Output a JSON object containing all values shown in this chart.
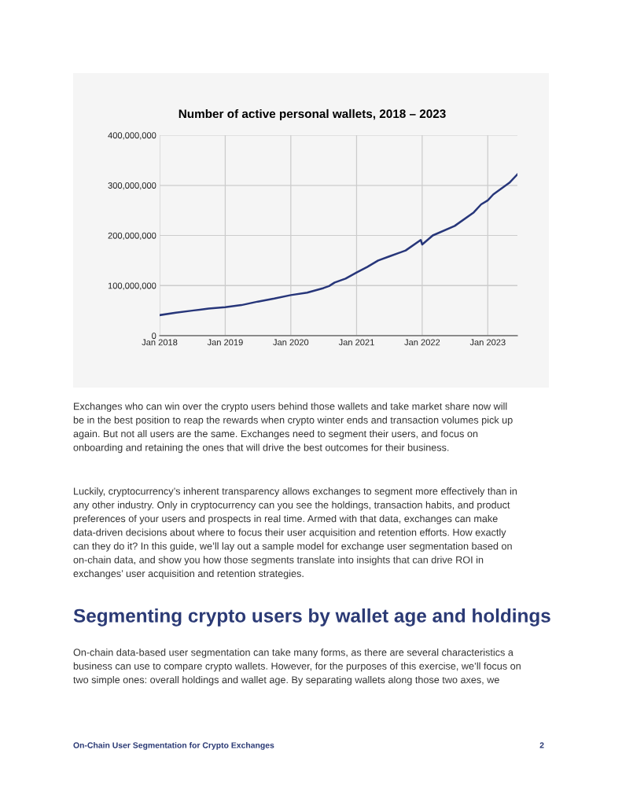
{
  "chart_data": {
    "type": "line",
    "title": "Number of active personal wallets, 2018 – 2023",
    "x": [
      "2018-01-01",
      "2018-04-01",
      "2018-07-01",
      "2018-10-01",
      "2019-01-01",
      "2019-04-01",
      "2019-07-01",
      "2019-10-01",
      "2020-01-01",
      "2020-04-01",
      "2020-07-01",
      "2020-08-01",
      "2020-09-01",
      "2020-11-01",
      "2021-01-01",
      "2021-03-01",
      "2021-05-01",
      "2021-07-01",
      "2021-10-01",
      "2021-12-24",
      "2022-01-01",
      "2022-03-01",
      "2022-07-01",
      "2022-10-15",
      "2022-11-25",
      "2023-01-01",
      "2023-02-01",
      "2023-05-01",
      "2023-06-15"
    ],
    "series": [
      {
        "color": "#27367a",
        "values": [
          41000000,
          46000000,
          50000000,
          54000000,
          57000000,
          61000000,
          68000000,
          74000000,
          81000000,
          86000000,
          95000000,
          99000000,
          106000000,
          114000000,
          126000000,
          137000000,
          150000000,
          158000000,
          170000000,
          191000000,
          182000000,
          200000000,
          219000000,
          246000000,
          262000000,
          270000000,
          282000000,
          305000000,
          322000000
        ]
      }
    ],
    "xlim": [
      "2018-01-01",
      "2023-06-15"
    ],
    "xticks": [
      {
        "value": "2018-01-01",
        "label": "Jan 2018"
      },
      {
        "value": "2019-01-01",
        "label": "Jan 2019"
      },
      {
        "value": "2020-01-01",
        "label": "Jan 2020"
      },
      {
        "value": "2021-01-01",
        "label": "Jan 2021"
      },
      {
        "value": "2022-01-01",
        "label": "Jan 2022"
      },
      {
        "value": "2023-01-01",
        "label": "Jan 2023"
      }
    ],
    "ylim": [
      0,
      400000000
    ],
    "yticks": [
      {
        "value": 0,
        "label": "0"
      },
      {
        "value": 100000000,
        "label": "100,000,000"
      },
      {
        "value": 200000000,
        "label": "200,000,000"
      },
      {
        "value": 300000000,
        "label": "300,000,000"
      },
      {
        "value": 400000000,
        "label": "400,000,000"
      }
    ],
    "grid": true,
    "legend": false,
    "marker": "none",
    "line_style": "solid",
    "annotations": [
      "Exchanges who can win over the crypto users behind those wallets and take market share now will\nbe in the best position to reap the rewards when crypto winter ends and transaction volumes pick up\nagain. But not all users are the same. Exchanges need to segment their users, and focus on\nonboarding and retaining the ones that will drive the best outcomes for their business.",
      "Luckily, cryptocurrency’s inherent transparency allows exchanges to segment more effectively than in\nany other industry. Only in cryptocurrency can you see the holdings, transaction habits, and product\npreferences of your users and prospects in real time. Armed with that data, exchanges can make\ndata-driven decisions about where to focus their user acquisition and retention efforts. How exactly\ncan they do it? In this guide, we’ll lay out a sample model for exchange user segmentation based on\non-chain data, and show you how those segments translate into insights that can drive ROI in\nexchanges’ user acquisition and retention strategies.",
      "Segmenting crypto users by wallet age and holdings",
      "On-chain data-based user segmentation can take many forms, as there are several characteristics a\nbusiness can use to compare crypto wallets. However, for the purposes of this exercise, we’ll focus on\ntwo simple ones: overall holdings and wallet age. By separating wallets along those two axes, we",
      "On-Chain User Segmentation for Crypto Exchanges",
      "2"
    ]
  }
}
